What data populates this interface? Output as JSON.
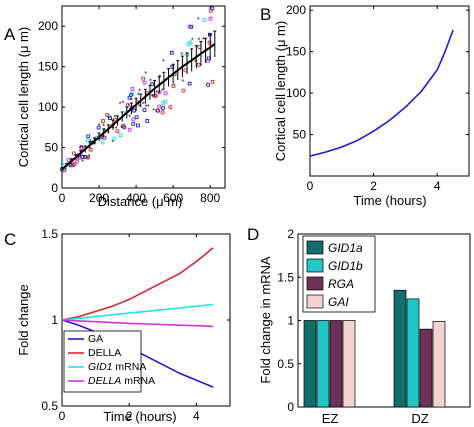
{
  "panels": {
    "A": "A",
    "B": "B",
    "C": "C",
    "D": "D"
  },
  "colors": {
    "blue": "#1a1adb",
    "red": "#d42a2a",
    "cyan": "#22e0ee",
    "magenta": "#d62ee0",
    "teal_dark": "#116e6a",
    "teal_light": "#21c6c6",
    "plum": "#6e3158",
    "pink": "#f2d3d0"
  },
  "chart_data": [
    {
      "panel": "A",
      "type": "scatter",
      "xlabel": "Distance (μ m)",
      "ylabel": "Cortical cell length (μ m)",
      "xlim": [
        0,
        880
      ],
      "ylim": [
        0,
        225
      ],
      "xticks": [
        0,
        200,
        400,
        600,
        800
      ],
      "yticks": [
        0,
        50,
        100,
        150,
        200
      ],
      "mean_curve": {
        "x": [
          0,
          25,
          50,
          75,
          100,
          125,
          150,
          175,
          200,
          225,
          250,
          275,
          300,
          325,
          350,
          375,
          400,
          425,
          450,
          475,
          500,
          525,
          550,
          575,
          600,
          625,
          650,
          675,
          700,
          725,
          750,
          775,
          800,
          825
        ],
        "y": [
          23,
          28,
          33,
          38,
          43,
          48,
          53,
          58,
          63,
          68,
          73,
          78,
          83,
          88,
          93,
          98,
          103,
          108,
          113,
          118,
          123,
          127.5,
          132,
          136.5,
          141,
          145.5,
          150,
          154,
          158,
          162,
          166,
          170,
          174,
          178
        ],
        "err": [
          2,
          2,
          3,
          3,
          3,
          4,
          4,
          4,
          5,
          5,
          5,
          6,
          6,
          6,
          7,
          7,
          8,
          8,
          9,
          9,
          10,
          10,
          11,
          11,
          12,
          12,
          13,
          13,
          14,
          14,
          15,
          15,
          16,
          16
        ]
      }
    },
    {
      "panel": "B",
      "type": "line",
      "xlabel": "Time (hours)",
      "ylabel": "Cortical cell length (μ m)",
      "xlim": [
        0,
        5
      ],
      "ylim": [
        0,
        205
      ],
      "xticks": [
        0,
        2,
        4
      ],
      "yticks": [
        50,
        100,
        150,
        200
      ],
      "series": [
        {
          "x": [
            0,
            0.5,
            1,
            1.5,
            2,
            2.5,
            3,
            3.5,
            4,
            4.25,
            4.5
          ],
          "y": [
            24,
            29,
            35,
            43,
            54,
            67,
            83,
            102,
            128,
            150,
            176
          ]
        }
      ]
    },
    {
      "panel": "C",
      "type": "line",
      "xlabel": "Time (hours)",
      "ylabel": "Fold change",
      "xlim": [
        0,
        5
      ],
      "ylim": [
        0.5,
        1.5
      ],
      "xticks": [
        0,
        2,
        4
      ],
      "yticks": [
        0.5,
        1,
        1.5
      ],
      "series": [
        {
          "name": "GA",
          "x": [
            0,
            0.5,
            1,
            1.5,
            2,
            2.5,
            3,
            3.5,
            4,
            4.5
          ],
          "y": [
            1,
            0.97,
            0.93,
            0.89,
            0.84,
            0.79,
            0.74,
            0.69,
            0.65,
            0.61
          ]
        },
        {
          "name": "DELLA",
          "x": [
            0,
            0.5,
            1,
            1.5,
            2,
            2.5,
            3,
            3.5,
            4,
            4.5
          ],
          "y": [
            1,
            1.02,
            1.05,
            1.08,
            1.12,
            1.17,
            1.22,
            1.27,
            1.34,
            1.42
          ]
        },
        {
          "name": "GID1 mRNA",
          "x": [
            0,
            0.5,
            1,
            1.5,
            2,
            2.5,
            3,
            3.5,
            4,
            4.5
          ],
          "y": [
            1,
            1.01,
            1.02,
            1.03,
            1.04,
            1.05,
            1.06,
            1.07,
            1.08,
            1.09
          ]
        },
        {
          "name": "DELLA mRNA",
          "x": [
            0,
            0.5,
            1,
            1.5,
            2,
            2.5,
            3,
            3.5,
            4,
            4.5
          ],
          "y": [
            1,
            0.995,
            0.99,
            0.985,
            0.98,
            0.977,
            0.973,
            0.97,
            0.967,
            0.963
          ]
        }
      ],
      "legend": [
        {
          "pre": "",
          "ital": "",
          "post": "GA"
        },
        {
          "pre": "",
          "ital": "",
          "post": "DELLA"
        },
        {
          "pre": "",
          "ital": "GID1",
          "post": " mRNA"
        },
        {
          "pre": "",
          "ital": "DELLA",
          "post": " mRNA"
        }
      ],
      "legend_position": "lower-left"
    },
    {
      "panel": "D",
      "type": "bar",
      "ylabel": "Fold change in mRNA",
      "ylim": [
        0,
        2
      ],
      "yticks": [
        0,
        0.5,
        1,
        1.5,
        2
      ],
      "categories": [
        "EZ",
        "DZ"
      ],
      "series": [
        {
          "name": "GID1a",
          "values": [
            1,
            1.35
          ]
        },
        {
          "name": "GID1b",
          "values": [
            1,
            1.25
          ]
        },
        {
          "name": "RGA",
          "values": [
            1,
            0.9
          ]
        },
        {
          "name": "GAI",
          "values": [
            1,
            0.99
          ]
        }
      ],
      "legend_position": "top-left"
    }
  ]
}
